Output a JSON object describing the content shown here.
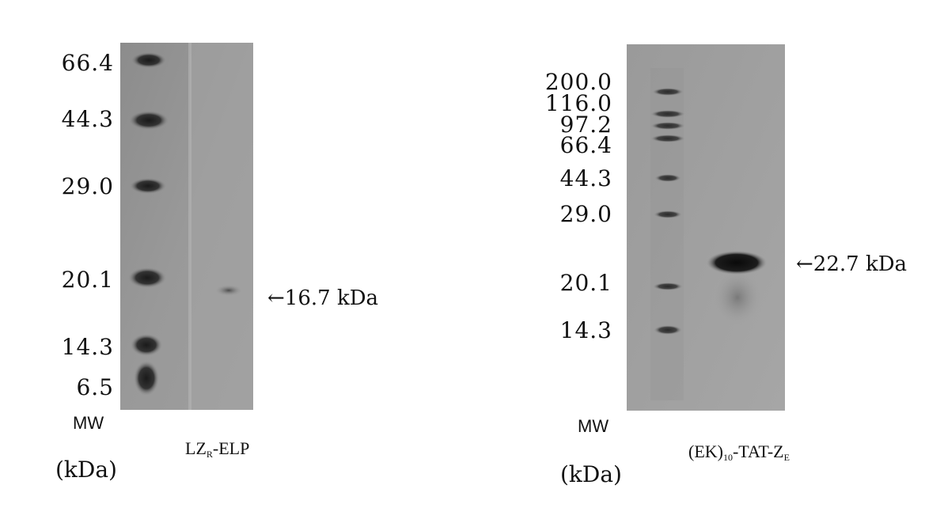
{
  "gels": [
    {
      "id": "left",
      "marker_labels": [
        "66.4",
        "44.3",
        "29.0",
        "20.1",
        "14.3",
        "6.5"
      ],
      "axis_label": "MW",
      "axis_unit": "(kDa)",
      "lane_label": {
        "main": "LZ",
        "sub": "R",
        "suffix": "-ELP"
      },
      "band_annotation": "←16.7 kDa"
    },
    {
      "id": "right",
      "marker_labels": [
        "200.0",
        "116.0",
        "97.2",
        "66.4",
        "44.3",
        "29.0",
        "20.1",
        "14.3"
      ],
      "axis_label": "MW",
      "axis_unit": "(kDa)",
      "lane_label": {
        "main": "(EK)",
        "sub": "10",
        "suffix": "-TAT-Z",
        "sub2": "E"
      },
      "band_annotation": "←22.7 kDa"
    }
  ]
}
